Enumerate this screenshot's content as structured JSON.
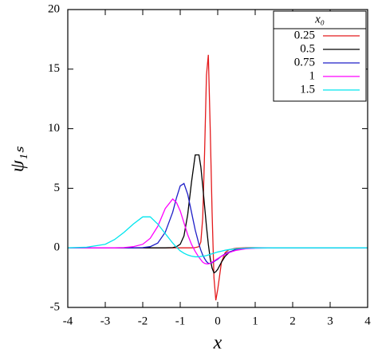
{
  "chart_data": {
    "type": "line",
    "x_label": "x",
    "y_label": "ψ₁ₛ",
    "legend_title": "x₀",
    "legend": "upper right",
    "xlim": [
      -4,
      4
    ],
    "xticks": [
      -4,
      -3,
      -2,
      -1,
      0,
      1,
      2,
      3,
      4
    ],
    "ylim": [
      -5,
      20
    ],
    "yticks": [
      -5,
      0,
      5,
      10,
      15,
      20
    ],
    "x": [
      -4,
      -3.5,
      -3,
      -2.75,
      -2.5,
      -2.25,
      -2,
      -1.8,
      -1.6,
      -1.4,
      -1.2,
      -1.1,
      -1,
      -0.9,
      -0.8,
      -0.7,
      -0.6,
      -0.5,
      -0.45,
      -0.4,
      -0.35,
      -0.3,
      -0.25,
      -0.2,
      -0.15,
      -0.1,
      -0.05,
      0,
      0.1,
      0.2,
      0.3,
      0.5,
      0.75,
      1,
      1.5,
      2,
      3,
      4
    ],
    "series": [
      {
        "name": "0.25",
        "color": "#e41a1c",
        "values": [
          0,
          0,
          0,
          0,
          0,
          0,
          0,
          0,
          0,
          0,
          0,
          0,
          0,
          0,
          0,
          0,
          0.02,
          0.1,
          0.5,
          2.5,
          8,
          14.5,
          16.2,
          10,
          3,
          -2.5,
          -4.4,
          -3.5,
          -1.2,
          -0.4,
          -0.15,
          -0.03,
          0,
          0,
          0,
          0,
          0,
          0
        ]
      },
      {
        "name": "0.5",
        "color": "#000000",
        "values": [
          0,
          0,
          0,
          0,
          0,
          0,
          0,
          0,
          0,
          0,
          0.02,
          0.1,
          0.3,
          1,
          2.8,
          5.5,
          7.8,
          7.8,
          6.8,
          5.2,
          3.5,
          1.8,
          0.3,
          -0.9,
          -1.7,
          -2.1,
          -2.0,
          -1.8,
          -1.2,
          -0.7,
          -0.4,
          -0.1,
          -0.02,
          0,
          0,
          0,
          0,
          0
        ]
      },
      {
        "name": "0.75",
        "color": "#1f1fc8",
        "values": [
          0,
          0,
          0,
          0,
          0,
          0,
          0.02,
          0.1,
          0.4,
          1.3,
          3,
          4.2,
          5.2,
          5.4,
          4.5,
          3,
          1.5,
          0.3,
          -0.2,
          -0.6,
          -0.9,
          -1.15,
          -1.3,
          -1.3,
          -1.25,
          -1.15,
          -1.05,
          -0.95,
          -0.7,
          -0.5,
          -0.35,
          -0.15,
          -0.05,
          -0.01,
          0,
          0,
          0,
          0
        ]
      },
      {
        "name": "1",
        "color": "#ff00ff",
        "values": [
          0,
          0,
          0,
          0,
          0.02,
          0.1,
          0.3,
          0.8,
          1.8,
          3.3,
          4.1,
          3.8,
          3.1,
          2.1,
          1.1,
          0.3,
          -0.3,
          -0.8,
          -1,
          -1.2,
          -1.3,
          -1.35,
          -1.35,
          -1.3,
          -1.2,
          -1.1,
          -1.0,
          -0.9,
          -0.7,
          -0.55,
          -0.4,
          -0.2,
          -0.08,
          -0.03,
          0,
          0,
          0,
          0
        ]
      },
      {
        "name": "1.5",
        "color": "#00e5ee",
        "values": [
          0,
          0.05,
          0.3,
          0.7,
          1.3,
          2,
          2.6,
          2.6,
          2.0,
          1.2,
          0.4,
          0.05,
          -0.25,
          -0.45,
          -0.6,
          -0.7,
          -0.75,
          -0.75,
          -0.72,
          -0.7,
          -0.68,
          -0.65,
          -0.6,
          -0.55,
          -0.5,
          -0.45,
          -0.4,
          -0.35,
          -0.28,
          -0.2,
          -0.15,
          -0.08,
          -0.03,
          -0.01,
          0,
          0,
          0,
          0
        ]
      }
    ]
  }
}
